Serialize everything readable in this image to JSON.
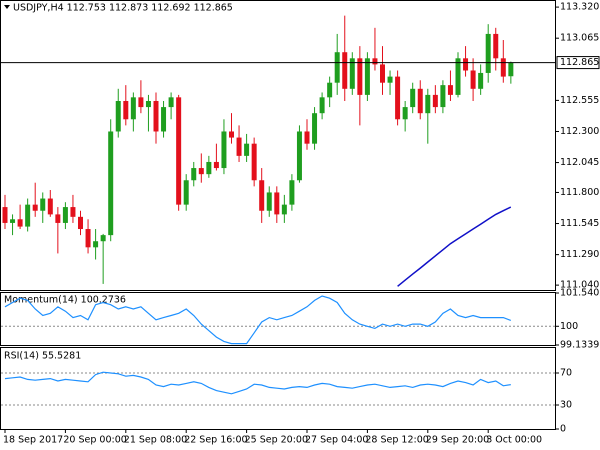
{
  "chart_data": [
    {
      "type": "candlestick",
      "title": "USDJPY,H4  112.753 112.873 112.692 112.865",
      "categories": [
        "18 Sep 2017",
        null,
        null,
        null,
        null,
        null,
        null,
        null,
        "20 Sep 00:00",
        null,
        null,
        null,
        null,
        null,
        null,
        null,
        "21 Sep 08:00",
        null,
        null,
        null,
        null,
        null,
        null,
        null,
        "22 Sep 16:00",
        null,
        null,
        null,
        null,
        null,
        null,
        null,
        "25 Sep 20:00",
        null,
        null,
        null,
        null,
        null,
        null,
        null,
        "27 Sep 04:00",
        null,
        null,
        null,
        null,
        null,
        null,
        null,
        "28 Sep 12:00",
        null,
        null,
        null,
        null,
        null,
        null,
        null,
        "29 Sep 20:00",
        null,
        null,
        null,
        null,
        null,
        null,
        null,
        "3 Oct 00:00",
        null,
        null,
        null
      ],
      "open": [
        111.68,
        111.55,
        111.58,
        111.52,
        111.7,
        111.65,
        111.75,
        111.62,
        111.55,
        111.68,
        111.6,
        111.5,
        111.35,
        111.4,
        111.45,
        112.3,
        112.55,
        112.4,
        112.58,
        112.5,
        112.55,
        112.3,
        112.5,
        112.58,
        111.7,
        111.9,
        112.0,
        111.95,
        112.05,
        112.0,
        112.3,
        112.25,
        112.1,
        112.2,
        111.9,
        111.65,
        111.8,
        111.62,
        111.7,
        111.9,
        112.3,
        112.2,
        112.45,
        112.58,
        112.7,
        112.95,
        112.65,
        112.9,
        112.6,
        112.9,
        112.85,
        112.7,
        112.75,
        112.4,
        112.5,
        112.65,
        112.45,
        112.6,
        112.5,
        112.68,
        112.6,
        112.9,
        112.8,
        112.65,
        112.78,
        113.1,
        112.9,
        112.753
      ],
      "high": [
        111.78,
        111.62,
        111.7,
        111.75,
        111.88,
        111.8,
        111.82,
        111.68,
        111.72,
        111.78,
        111.65,
        111.58,
        111.5,
        111.46,
        112.4,
        112.65,
        112.68,
        112.62,
        112.72,
        112.6,
        112.62,
        112.55,
        112.62,
        112.6,
        111.95,
        112.05,
        112.12,
        112.1,
        112.2,
        112.4,
        112.45,
        112.35,
        112.28,
        112.25,
        112.0,
        111.85,
        111.85,
        111.78,
        111.95,
        112.35,
        112.4,
        112.5,
        112.62,
        112.75,
        113.1,
        113.25,
        112.95,
        113.0,
        112.95,
        113.15,
        113.0,
        112.8,
        112.8,
        112.55,
        112.7,
        112.72,
        112.65,
        112.68,
        112.72,
        112.8,
        112.95,
        113.0,
        112.9,
        112.85,
        113.18,
        113.15,
        113.05,
        112.873
      ],
      "low": [
        111.5,
        111.45,
        111.5,
        111.48,
        111.6,
        111.55,
        111.6,
        111.3,
        111.5,
        111.55,
        111.45,
        111.3,
        111.25,
        111.05,
        111.4,
        112.25,
        112.35,
        112.3,
        112.45,
        112.3,
        112.2,
        112.25,
        112.4,
        111.65,
        111.65,
        111.85,
        111.88,
        111.92,
        111.98,
        111.95,
        112.2,
        112.05,
        112.05,
        111.85,
        111.55,
        111.6,
        111.55,
        111.55,
        111.65,
        111.88,
        112.15,
        112.15,
        112.4,
        112.5,
        112.6,
        112.55,
        112.6,
        112.35,
        112.55,
        112.8,
        112.6,
        112.6,
        112.35,
        112.3,
        112.45,
        112.4,
        112.2,
        112.45,
        112.45,
        112.55,
        112.58,
        112.75,
        112.55,
        112.6,
        112.7,
        112.8,
        112.7,
        112.692
      ],
      "close": [
        111.55,
        111.58,
        111.52,
        111.7,
        111.65,
        111.75,
        111.62,
        111.55,
        111.68,
        111.6,
        111.5,
        111.35,
        111.4,
        111.45,
        112.3,
        112.55,
        112.4,
        112.58,
        112.5,
        112.55,
        112.3,
        112.5,
        112.58,
        111.7,
        111.9,
        112.0,
        111.95,
        112.05,
        112.0,
        112.3,
        112.25,
        112.1,
        112.2,
        111.9,
        111.65,
        111.8,
        111.62,
        111.7,
        111.9,
        112.3,
        112.2,
        112.45,
        112.58,
        112.7,
        112.95,
        112.65,
        112.9,
        112.6,
        112.9,
        112.85,
        112.7,
        112.75,
        112.4,
        112.5,
        112.65,
        112.45,
        112.6,
        112.5,
        112.68,
        112.6,
        112.9,
        112.8,
        112.65,
        112.78,
        113.1,
        112.9,
        112.75,
        112.865
      ],
      "up_color": "#1f9e1f",
      "down_color": "#e3101c",
      "ma": {
        "color": "#1010c8",
        "values": [
          null,
          null,
          null,
          null,
          null,
          null,
          null,
          null,
          null,
          null,
          null,
          null,
          null,
          null,
          null,
          null,
          null,
          null,
          null,
          null,
          null,
          null,
          null,
          null,
          null,
          null,
          null,
          null,
          null,
          null,
          null,
          null,
          null,
          null,
          null,
          null,
          null,
          null,
          null,
          null,
          null,
          null,
          null,
          null,
          null,
          null,
          null,
          null,
          null,
          null,
          null,
          null,
          111.03,
          111.08,
          111.13,
          111.18,
          111.23,
          111.28,
          111.33,
          111.38,
          111.42,
          111.46,
          111.5,
          111.54,
          111.58,
          111.62,
          111.65,
          111.68
        ]
      },
      "last_price": 112.865,
      "ylim": [
        111.0,
        113.37
      ],
      "yticks": [
        {
          "value": 113.32,
          "label": "113.320"
        },
        {
          "value": 113.065,
          "label": "113.065"
        },
        {
          "value": 112.555,
          "label": "112.555"
        },
        {
          "value": 112.3,
          "label": "112.300"
        },
        {
          "value": 112.045,
          "label": "112.045"
        },
        {
          "value": 111.8,
          "label": "111.800"
        },
        {
          "value": 111.545,
          "label": "111.545"
        },
        {
          "value": 111.29,
          "label": "111.290"
        },
        {
          "value": 111.04,
          "label": "111.040"
        }
      ]
    },
    {
      "type": "line",
      "title": "Momentum(14) 100.2736",
      "color": "#1e90ff",
      "values": [
        100.9,
        101.1,
        101.3,
        101.2,
        100.8,
        100.5,
        100.6,
        100.9,
        100.7,
        100.4,
        100.5,
        100.3,
        101.0,
        101.1,
        101.0,
        100.8,
        100.9,
        100.8,
        100.9,
        100.6,
        100.3,
        100.4,
        100.5,
        100.6,
        100.8,
        100.5,
        100.1,
        99.8,
        99.5,
        99.3,
        99.2,
        99.2,
        99.2,
        99.7,
        100.2,
        100.4,
        100.3,
        100.4,
        100.5,
        100.7,
        100.9,
        101.2,
        101.4,
        101.3,
        101.1,
        100.6,
        100.3,
        100.1,
        100.0,
        99.9,
        100.1,
        100.0,
        100.1,
        100.0,
        100.1,
        100.1,
        100.0,
        100.2,
        100.6,
        100.8,
        100.5,
        100.4,
        100.5,
        100.4,
        100.4,
        100.4,
        100.4,
        100.2736
      ],
      "ylim": [
        99.1339,
        101.5402
      ],
      "yticks": [
        101.5402,
        100,
        99.1339
      ],
      "levels": [
        100
      ]
    },
    {
      "type": "line",
      "title": "RSI(14) 55.5281",
      "color": "#1e90ff",
      "values": [
        63,
        64,
        65,
        62,
        61,
        62,
        63,
        60,
        62,
        61,
        60,
        59,
        68,
        71,
        70,
        69,
        66,
        67,
        65,
        62,
        55,
        53,
        56,
        55,
        57,
        59,
        57,
        52,
        48,
        46,
        44,
        47,
        50,
        56,
        55,
        52,
        51,
        50,
        52,
        53,
        52,
        55,
        57,
        56,
        53,
        52,
        51,
        53,
        55,
        56,
        54,
        52,
        53,
        54,
        52,
        55,
        56,
        55,
        53,
        57,
        60,
        58,
        55,
        62,
        58,
        60,
        54,
        55.5281
      ],
      "ylim": [
        0,
        100
      ],
      "yticks": [
        70,
        30,
        0
      ],
      "levels": [
        70,
        30
      ]
    }
  ]
}
